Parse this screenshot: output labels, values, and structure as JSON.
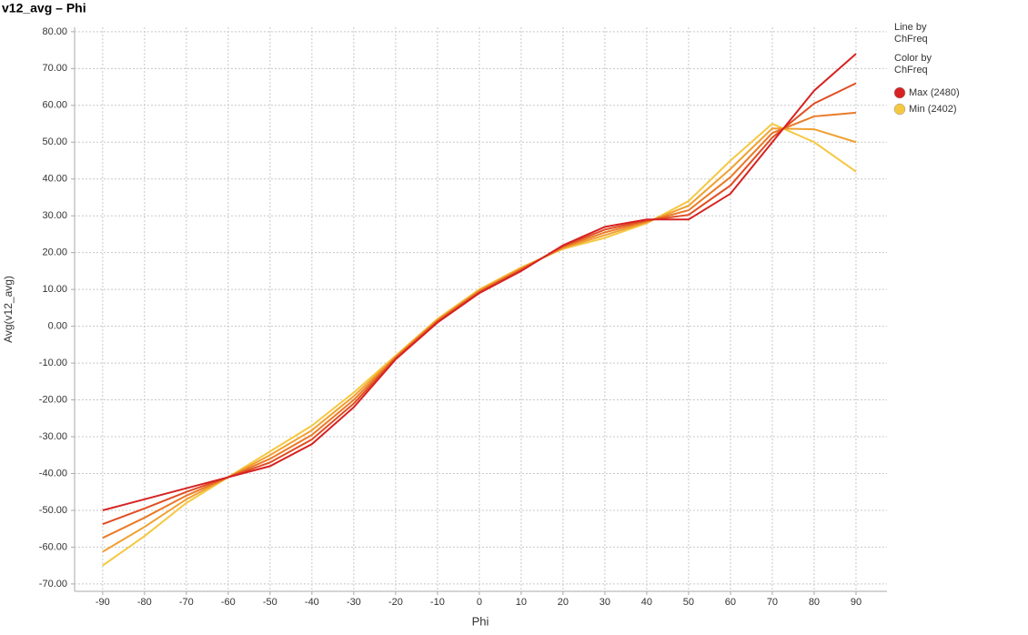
{
  "chart_data": {
    "type": "line",
    "title": "v12_avg – Phi",
    "x_label": "Phi",
    "y_label": "Avg(v12_avg)",
    "x": [
      -90,
      -80,
      -70,
      -60,
      -50,
      -40,
      -30,
      -20,
      -10,
      0,
      10,
      20,
      30,
      40,
      50,
      60,
      70,
      80,
      90
    ],
    "series": [
      {
        "color": "#f5c842",
        "values": [
          -65,
          -57,
          -48,
          -41,
          -34,
          -27,
          -18,
          -8,
          2,
          10,
          16,
          21,
          24,
          28,
          34,
          45,
          55,
          50,
          42
        ]
      },
      {
        "color": "#f0a030",
        "values": [
          -61.25,
          -54.5,
          -47,
          -41,
          -35,
          -28.25,
          -19,
          -8.25,
          1.75,
          9.75,
          15.75,
          21.25,
          24.75,
          28.25,
          32.75,
          42.75,
          53.75,
          53.5,
          50
        ]
      },
      {
        "color": "#ea7a28",
        "values": [
          -57.5,
          -52,
          -46,
          -41,
          -36,
          -29.5,
          -20,
          -8.5,
          1.5,
          9.5,
          15.5,
          21.5,
          25.5,
          28.5,
          31.5,
          40.5,
          52.5,
          57,
          58
        ]
      },
      {
        "color": "#e04e24",
        "values": [
          -53.75,
          -49.5,
          -45,
          -41,
          -37,
          -30.75,
          -21,
          -8.75,
          1.25,
          9.25,
          15.25,
          21.75,
          26.25,
          28.75,
          30.25,
          38.25,
          51.25,
          60.5,
          66
        ]
      },
      {
        "color": "#d62222",
        "values": [
          -50,
          -47,
          -44,
          -41,
          -38,
          -32,
          -22,
          -9,
          1,
          9,
          15,
          22,
          27,
          29,
          29,
          36,
          50,
          64,
          74
        ]
      }
    ],
    "xlim": [
      -96.7,
      97.4
    ],
    "xticks": [
      -90,
      -80,
      -70,
      -60,
      -50,
      -40,
      -30,
      -20,
      -10,
      0,
      10,
      20,
      30,
      40,
      50,
      60,
      70,
      80,
      90
    ],
    "ylim": [
      -72,
      81.2
    ],
    "yticks": [
      {
        "value": 80,
        "label": "80.00"
      },
      {
        "value": 70,
        "label": "70.00"
      },
      {
        "value": 60,
        "label": "60.00"
      },
      {
        "value": 50,
        "label": "50.00"
      },
      {
        "value": 40,
        "label": "40.00"
      },
      {
        "value": 30,
        "label": "30.00"
      },
      {
        "value": 20,
        "label": "20.00"
      },
      {
        "value": 10,
        "label": "10.00"
      },
      {
        "value": 0,
        "label": "0.00"
      },
      {
        "value": -10,
        "label": "-10.00"
      },
      {
        "value": -20,
        "label": "-20.00"
      },
      {
        "value": -30,
        "label": "-30.00"
      },
      {
        "value": -40,
        "label": "-40.00"
      },
      {
        "value": -50,
        "label": "-50.00"
      },
      {
        "value": -60,
        "label": "-60.00"
      },
      {
        "value": -70,
        "label": "-70.00"
      }
    ],
    "grid": true,
    "legend": {
      "position": "right",
      "line_by": [
        "Line by",
        "ChFreq"
      ],
      "color_by": [
        "Color by",
        "ChFreq"
      ],
      "entries": [
        {
          "label": "Max (2480)",
          "color": "#d62222"
        },
        {
          "label": "Min (2402)",
          "color": "#f5c842"
        }
      ]
    }
  }
}
